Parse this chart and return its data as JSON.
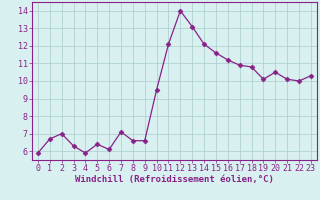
{
  "x": [
    0,
    1,
    2,
    3,
    4,
    5,
    6,
    7,
    8,
    9,
    10,
    11,
    12,
    13,
    14,
    15,
    16,
    17,
    18,
    19,
    20,
    21,
    22,
    23
  ],
  "y": [
    5.9,
    6.7,
    7.0,
    6.3,
    5.9,
    6.4,
    6.1,
    7.1,
    6.6,
    6.6,
    9.5,
    12.1,
    14.0,
    13.1,
    12.1,
    11.6,
    11.2,
    10.9,
    10.8,
    10.1,
    10.5,
    10.1,
    10.0,
    10.3
  ],
  "line_color": "#882288",
  "marker": "D",
  "marker_size": 2.5,
  "bg_color": "#d8f0f0",
  "grid_color": "#aacccc",
  "axis_color": "#882288",
  "border_color": "#882288",
  "xlabel": "Windchill (Refroidissement éolien,°C)",
  "xlabel_fontsize": 6.5,
  "tick_fontsize": 6.0,
  "ylim": [
    5.5,
    14.5
  ],
  "xlim": [
    -0.5,
    23.5
  ],
  "yticks": [
    6,
    7,
    8,
    9,
    10,
    11,
    12,
    13,
    14
  ],
  "xticks": [
    0,
    1,
    2,
    3,
    4,
    5,
    6,
    7,
    8,
    9,
    10,
    11,
    12,
    13,
    14,
    15,
    16,
    17,
    18,
    19,
    20,
    21,
    22,
    23
  ]
}
